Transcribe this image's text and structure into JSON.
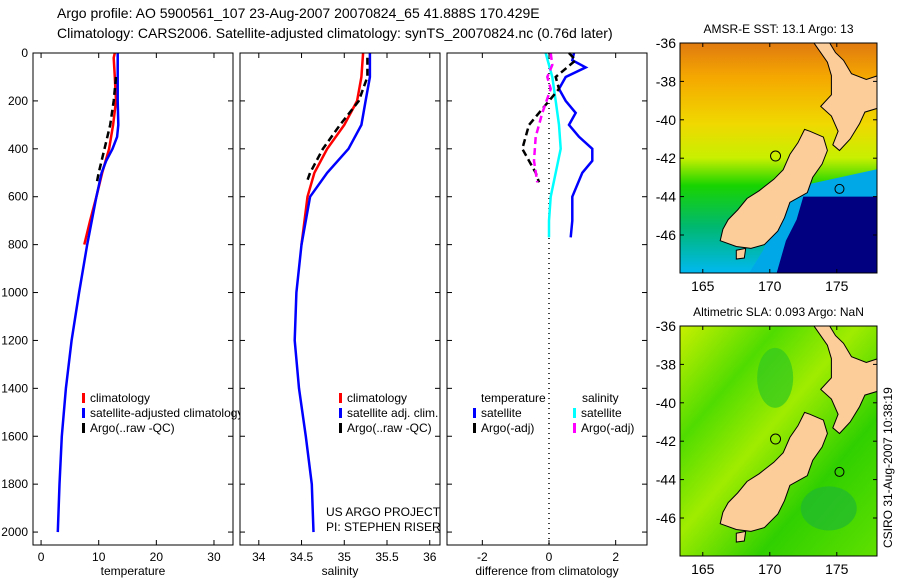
{
  "title_line1": "Argo profile: AO 5900561_107 23-Aug-2007 20070824_65 41.888S 170.429E",
  "title_line2": "Climatology: CARS2006. Satellite-adjusted climatology: synTS_20070824.nc (0.76d later)",
  "footer_stamp": "CSIRO 31-Aug-2007 10:38:19",
  "project_line1": "US ARGO PROJECT",
  "project_line2": "PI: STEPHEN RISER",
  "colors": {
    "climatology": "#ff0000",
    "satellite": "#0000ff",
    "argo": "#000000",
    "sat_salinity": "#00ffff",
    "argo_salinity": "#ff00ff",
    "land": "#fccc99"
  },
  "chart_data": [
    {
      "type": "line",
      "xlabel": "temperature",
      "ylabel": "",
      "xlim": [
        -1.4,
        33.3
      ],
      "ylim": [
        0,
        2054
      ],
      "y_reversed": true,
      "xticks": [
        0,
        10,
        20,
        30
      ],
      "yticks": [
        0,
        200,
        400,
        600,
        800,
        1000,
        1200,
        1400,
        1600,
        1800,
        2000
      ],
      "legend": [
        "climatology",
        "satellite-adjusted climatology",
        "Argo(..raw -QC)"
      ],
      "series": [
        {
          "name": "climatology",
          "color": "#ff0000",
          "dash": false,
          "depth": [
            0,
            20,
            100,
            200,
            300,
            400,
            500,
            600,
            700,
            800
          ],
          "values": [
            12.8,
            12.6,
            12.8,
            13.0,
            12.5,
            11.8,
            10.6,
            9.6,
            8.5,
            7.5
          ]
        },
        {
          "name": "satellite-adjusted climatology",
          "color": "#0000ff",
          "dash": false,
          "depth": [
            0,
            100,
            200,
            300,
            350,
            400,
            450,
            500,
            600,
            800,
            1000,
            1200,
            1400,
            1600,
            1800,
            2000
          ],
          "values": [
            13.3,
            13.3,
            13.3,
            13.4,
            13.2,
            12.4,
            11.3,
            10.5,
            9.6,
            8.0,
            6.6,
            5.3,
            4.3,
            3.6,
            3.2,
            2.9
          ]
        },
        {
          "name": "Argo(..raw -QC)",
          "color": "#000000",
          "dash": true,
          "depth": [
            100,
            200,
            300,
            400,
            500,
            550
          ],
          "values": [
            13.0,
            12.6,
            12.0,
            11.0,
            10.0,
            9.6
          ]
        }
      ]
    },
    {
      "type": "line",
      "xlabel": "salinity",
      "xlim": [
        33.78,
        36.12
      ],
      "ylim": [
        0,
        2054
      ],
      "y_reversed": true,
      "xticks": [
        34,
        34.5,
        35,
        35.5,
        36
      ],
      "legend": [
        "climatology",
        "satellite adj. clim.",
        "Argo(..raw -QC)"
      ],
      "series": [
        {
          "name": "climatology",
          "color": "#ff0000",
          "dash": false,
          "depth": [
            0,
            100,
            200,
            300,
            400,
            500,
            600,
            800
          ],
          "values": [
            35.22,
            35.2,
            35.15,
            35.0,
            34.8,
            34.65,
            34.57,
            34.5
          ]
        },
        {
          "name": "satellite adj. clim.",
          "color": "#0000ff",
          "dash": false,
          "depth": [
            0,
            100,
            200,
            300,
            400,
            500,
            600,
            800,
            1000,
            1200,
            1400,
            1600,
            1800,
            2000
          ],
          "values": [
            35.3,
            35.3,
            35.25,
            35.2,
            35.05,
            34.8,
            34.6,
            34.5,
            34.44,
            34.42,
            34.47,
            34.55,
            34.62,
            34.64
          ]
        },
        {
          "name": "Argo(..raw -QC)",
          "color": "#000000",
          "dash": true,
          "depth": [
            20,
            100,
            200,
            300,
            400,
            500,
            540
          ],
          "values": [
            35.27,
            35.27,
            35.17,
            34.95,
            34.75,
            34.6,
            34.56
          ]
        }
      ]
    },
    {
      "type": "line",
      "xlabel": "difference from climatology",
      "xlim": [
        -3.06,
        2.94
      ],
      "ylim": [
        0,
        2054
      ],
      "y_reversed": true,
      "xticks": [
        -2,
        0,
        2
      ],
      "legend_headers": [
        "temperature",
        "salinity"
      ],
      "legend": [
        "satellite",
        "Argo(-adj)",
        "satellite",
        "Argo(-adj)"
      ],
      "series": [
        {
          "name": "temperature satellite",
          "color": "#0000ff",
          "dash": false,
          "depth": [
            0,
            30,
            60,
            100,
            150,
            200,
            250,
            300,
            350,
            400,
            450,
            500,
            600,
            700,
            770
          ],
          "values": [
            0.75,
            0.7,
            1.1,
            0.5,
            0.3,
            0.5,
            0.8,
            0.6,
            0.9,
            1.3,
            1.3,
            1.0,
            0.7,
            0.7,
            0.65
          ]
        },
        {
          "name": "salinity satellite",
          "color": "#00ffff",
          "dash": false,
          "depth": [
            0,
            50,
            100,
            200,
            300,
            400,
            500,
            600,
            700,
            770
          ],
          "values": [
            -0.1,
            0.0,
            0.1,
            0.2,
            0.3,
            0.35,
            0.2,
            0.05,
            0.0,
            0.0
          ]
        },
        {
          "name": "temperature Argo(-adj)",
          "color": "#000000",
          "dash": true,
          "depth": [
            0,
            30,
            100,
            150,
            250,
            300,
            400,
            450,
            500,
            540
          ],
          "values": [
            0.6,
            0.8,
            0.2,
            0.3,
            -0.3,
            -0.6,
            -0.8,
            -0.6,
            -0.4,
            -0.3
          ]
        },
        {
          "name": "salinity Argo(-adj)",
          "color": "#ff00ff",
          "dash": true,
          "depth": [
            0,
            50,
            100,
            150,
            250,
            350,
            450,
            540
          ],
          "values": [
            0.05,
            0.1,
            -0.05,
            0.05,
            -0.2,
            -0.4,
            -0.45,
            -0.35
          ]
        }
      ]
    },
    {
      "type": "heatmap",
      "title": "AMSR-E SST: 13.1 Argo: 13",
      "xlim": [
        163.3,
        178.0
      ],
      "ylim": [
        -47.98,
        -36
      ],
      "xticks": [
        165,
        170,
        175
      ],
      "yticks": [
        -36,
        -38,
        -40,
        -42,
        -44,
        -46
      ],
      "argo_position": [
        170.429,
        -41.888
      ]
    },
    {
      "type": "heatmap",
      "title": "Altimetric SLA: 0.093 Argo: NaN",
      "xlim": [
        163.3,
        178.0
      ],
      "ylim": [
        -47.98,
        -36
      ],
      "xticks": [
        165,
        170,
        175
      ],
      "yticks": [
        -36,
        -38,
        -40,
        -42,
        -44,
        -46
      ],
      "argo_position": [
        170.429,
        -41.888
      ]
    }
  ]
}
